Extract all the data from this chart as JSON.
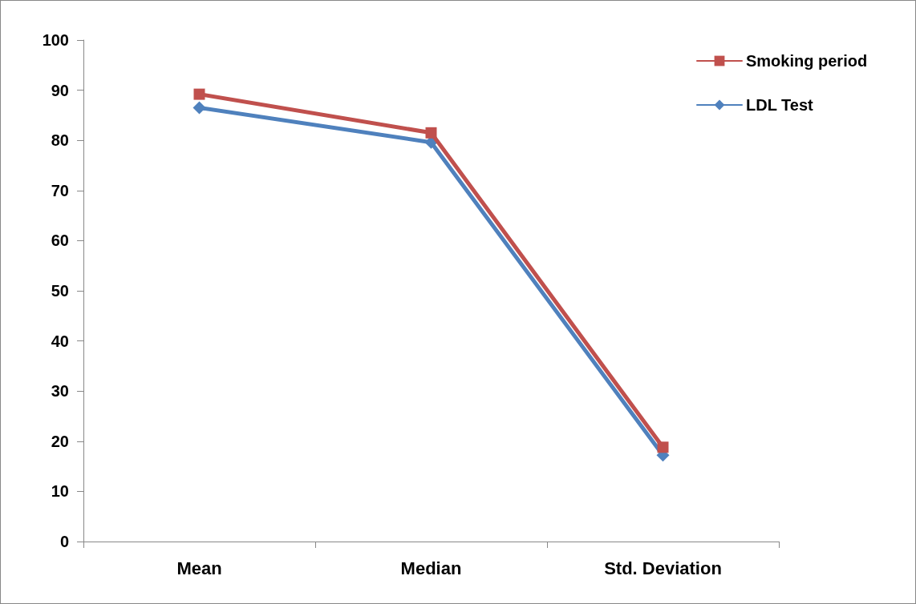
{
  "chart_data": {
    "type": "line",
    "categories": [
      "Mean",
      "Median",
      "Std. Deviation"
    ],
    "series": [
      {
        "name": "Smoking period",
        "color": "#c0504d",
        "marker": "square",
        "values": [
          89.2,
          81.5,
          18.8
        ]
      },
      {
        "name": "LDL Test",
        "color": "#4f81bd",
        "marker": "diamond",
        "values": [
          86.5,
          79.6,
          17.2
        ]
      }
    ],
    "ylim": [
      0,
      100
    ],
    "yticks": [
      0,
      10,
      20,
      30,
      40,
      50,
      60,
      70,
      80,
      90,
      100
    ],
    "grid": false,
    "legend": "top right",
    "line_style": "solid"
  }
}
